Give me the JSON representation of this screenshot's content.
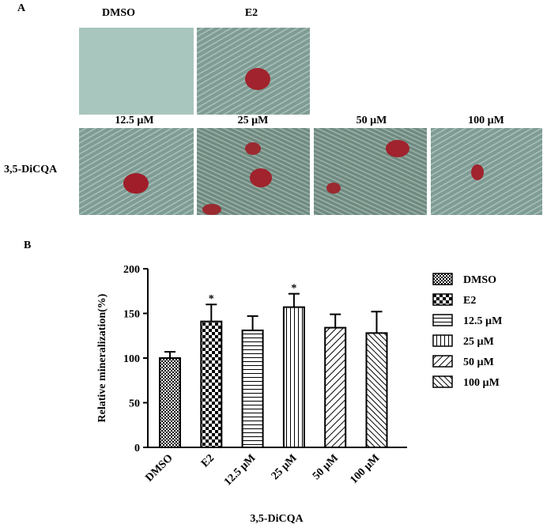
{
  "panel_a": {
    "label": "A",
    "top_labels": [
      "DMSO",
      "E2"
    ],
    "bottom_labels": [
      "12.5 µM",
      "25 µM",
      "50 µM",
      "100 µM"
    ],
    "row_label": "3,5-DiCQA"
  },
  "chart_data": {
    "type": "bar",
    "panel_label": "B",
    "categories": [
      "DMSO",
      "E2",
      "12.5 µM",
      "25 µM",
      "50 µM",
      "100 µM"
    ],
    "values": [
      100,
      141,
      131,
      157,
      134,
      128
    ],
    "errors": [
      7,
      19,
      16,
      15,
      15,
      24
    ],
    "significance": [
      null,
      "*",
      null,
      "*",
      null,
      null
    ],
    "x_label": "3,5-DiCQA",
    "y_label": "Relative mineralization(%)",
    "ylim": [
      0,
      200
    ],
    "yticks": [
      0,
      50,
      100,
      150,
      200
    ],
    "color": "#000000"
  }
}
